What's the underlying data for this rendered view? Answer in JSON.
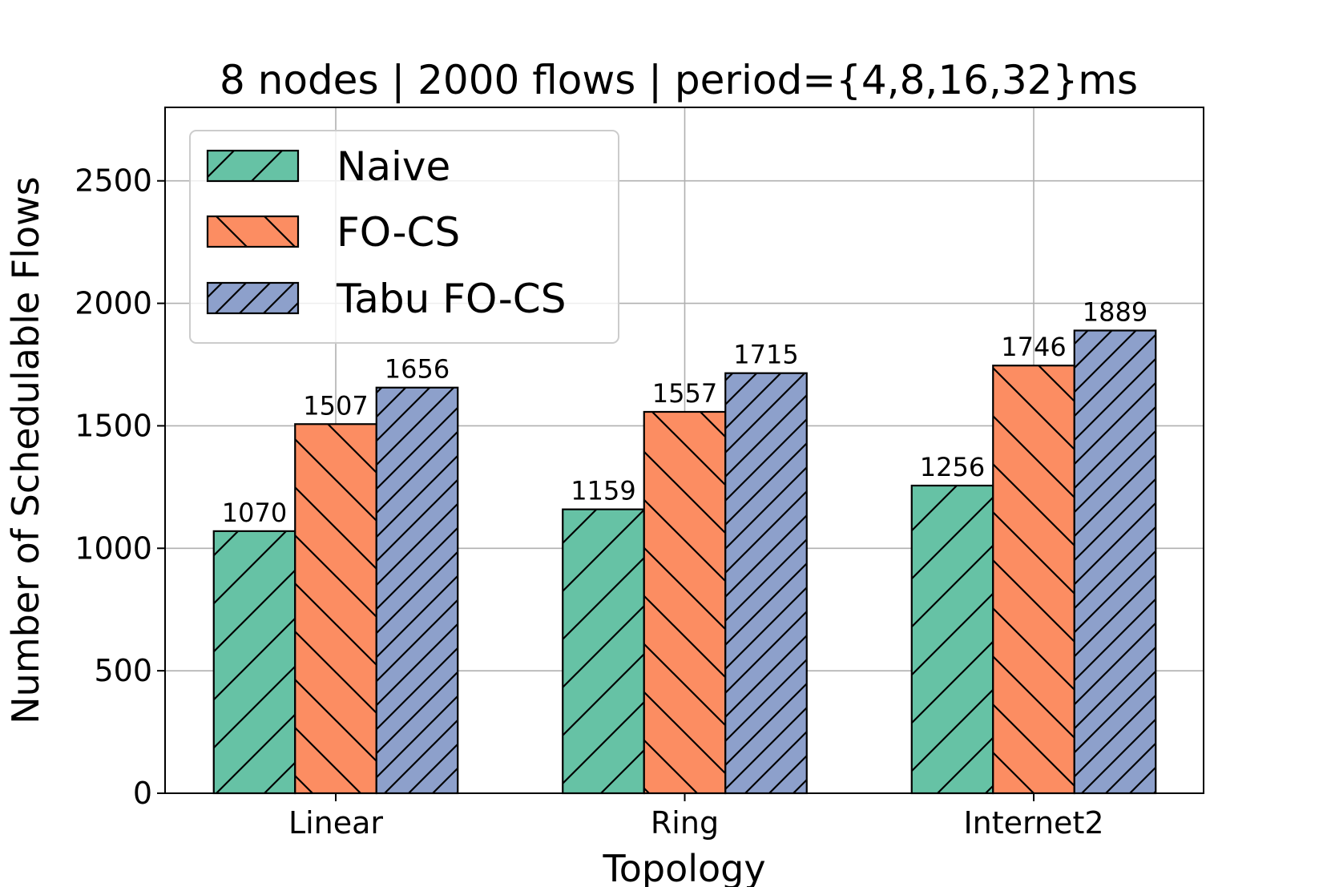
{
  "chart_data": {
    "type": "bar",
    "title": "8 nodes | 2000 flows | period={4,8,16,32}ms",
    "xlabel": "Topology",
    "ylabel": "Number of Schedulable Flows",
    "categories": [
      "Linear",
      "Ring",
      "Internet2"
    ],
    "series": [
      {
        "name": "Naive",
        "values": [
          1070,
          1159,
          1256
        ],
        "color": "#66c2a5",
        "hatch": "/"
      },
      {
        "name": "FO-CS",
        "values": [
          1507,
          1557,
          1746
        ],
        "color": "#fc8d62",
        "hatch": "\\"
      },
      {
        "name": "Tabu FO-CS",
        "values": [
          1656,
          1715,
          1889
        ],
        "color": "#8da0cb",
        "hatch": "//"
      }
    ],
    "yticks": [
      "0",
      "500",
      "1000",
      "1500",
      "2000",
      "2500"
    ],
    "ylim": [
      0,
      2800
    ],
    "grid": true,
    "legend_position": "top-left"
  }
}
